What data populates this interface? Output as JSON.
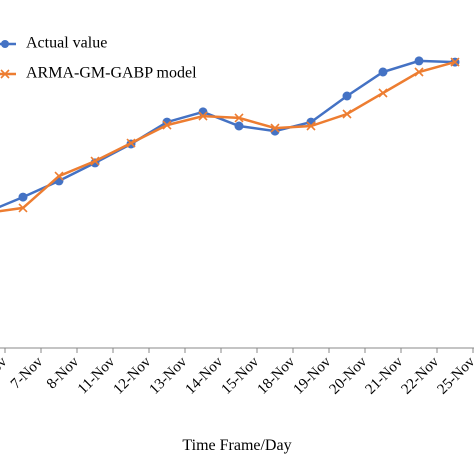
{
  "chart_data": {
    "type": "line",
    "x_label": "Time Frame/Day",
    "categories": [
      "Nov",
      "7-Nov",
      "8-Nov",
      "11-Nov",
      "12-Nov",
      "13-Nov",
      "14-Nov",
      "15-Nov",
      "18-Nov",
      "19-Nov",
      "20-Nov",
      "21-Nov",
      "22-Nov",
      "25-Nov"
    ],
    "ylim": [
      0,
      100
    ],
    "legend": "top-left",
    "series": [
      {
        "name": "Actual value",
        "color": "#4472c4",
        "marker": "circle",
        "values": [
          45.3,
          50.3,
          55.7,
          61.7,
          68,
          75.3,
          78.7,
          74,
          72.3,
          75.3,
          84,
          92,
          95.7,
          95.3
        ]
      },
      {
        "name": "ARMA-GM-GABP model",
        "color": "#ed7d31",
        "marker": "x",
        "values": [
          45,
          46.7,
          57.3,
          62.3,
          68.3,
          74.3,
          77.3,
          76.7,
          73.3,
          74,
          78,
          85,
          92,
          95.3
        ]
      }
    ]
  }
}
